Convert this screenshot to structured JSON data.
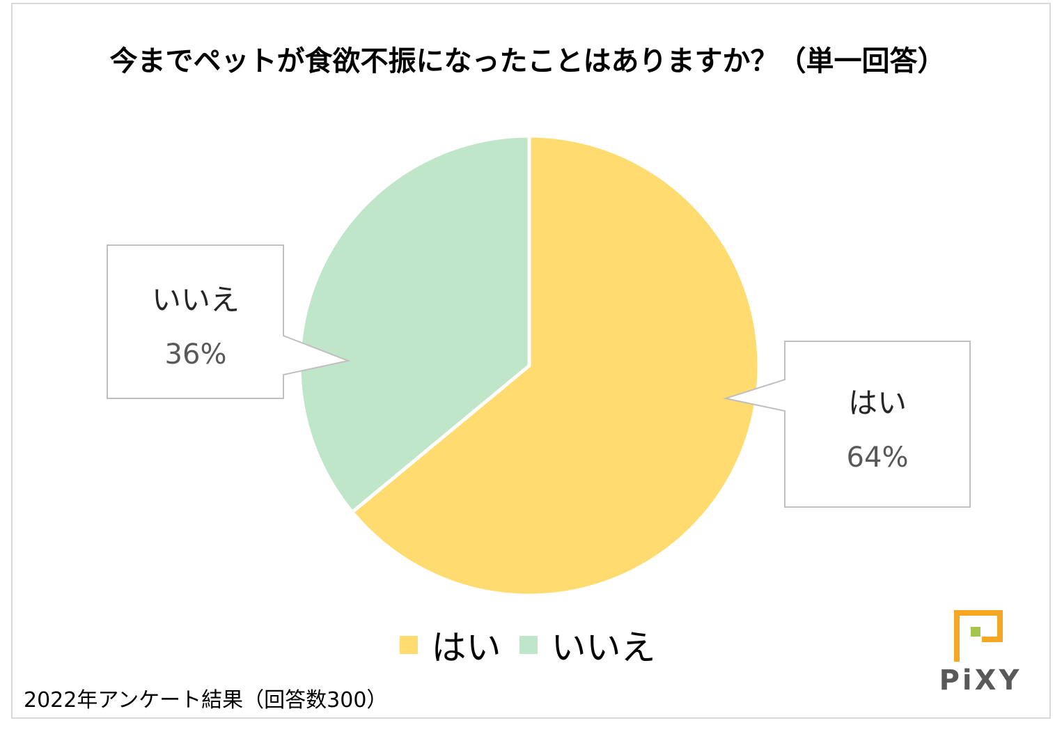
{
  "chart_data": {
    "type": "pie",
    "title": "今までペットが食欲不振になったことはありますか？（単一回答）",
    "categories": [
      "はい",
      "いいえ"
    ],
    "values": [
      64,
      36
    ],
    "value_labels": [
      "64%",
      "36%"
    ],
    "colors": [
      "#FFDB70",
      "#C0E6CA"
    ],
    "legend": "bottom",
    "note": "2022年アンケート結果（回答数300）"
  },
  "logo": {
    "text": "PiXY",
    "colors": [
      "#F5A623",
      "#A4C64A"
    ]
  }
}
